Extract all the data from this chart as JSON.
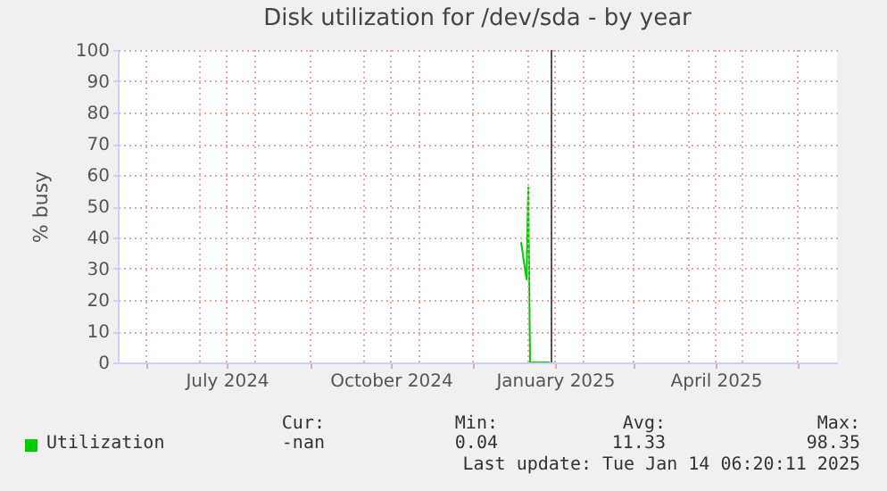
{
  "chart_data": {
    "type": "line",
    "title": "Disk utilization for /dev/sda - by year",
    "ylabel": "% busy",
    "x": [
      "2024-12-28",
      "2024-12-31",
      "2025-01-01",
      "2025-01-02",
      "2025-01-13"
    ],
    "series": [
      {
        "name": "Utilization",
        "color": "#00cc00",
        "values": [
          38.5,
          26.6,
          56,
          0,
          0
        ]
      }
    ],
    "xlim": [
      "2024-05-16",
      "2025-06-23"
    ],
    "xticks": [
      {
        "value": "2024-06-01",
        "label": null
      },
      {
        "value": "2024-07-01",
        "label": null
      },
      {
        "value": "2024-07-16",
        "label": "July 2024"
      },
      {
        "value": "2024-08-01",
        "label": null
      },
      {
        "value": "2024-09-01",
        "label": null
      },
      {
        "value": "2024-10-01",
        "label": null
      },
      {
        "value": "2024-10-16",
        "label": "October 2024"
      },
      {
        "value": "2024-11-01",
        "label": null
      },
      {
        "value": "2024-12-01",
        "label": null
      },
      {
        "value": "2025-01-01",
        "label": null
      },
      {
        "value": "2025-01-16",
        "label": "January 2025"
      },
      {
        "value": "2025-02-01",
        "label": null
      },
      {
        "value": "2025-03-01",
        "label": null
      },
      {
        "value": "2025-04-01",
        "label": null
      },
      {
        "value": "2025-04-16",
        "label": "April 2025"
      },
      {
        "value": "2025-05-01",
        "label": null
      },
      {
        "value": "2025-06-01",
        "label": null
      }
    ],
    "ylim": [
      0,
      100
    ],
    "yticks": [
      0,
      10,
      20,
      30,
      40,
      50,
      60,
      70,
      80,
      90,
      100
    ],
    "grid": true,
    "legend": "bottom",
    "ref_lines": [
      {
        "axis": "x",
        "value": "2025-01-14",
        "color": "#555555"
      }
    ],
    "annotations": [
      "Cur:",
      "Min:",
      "Avg:",
      "Max:",
      "-nan",
      "0.04",
      "11.33",
      "98.35",
      "Last update: Tue Jan 14 06:20:11 2025"
    ]
  }
}
